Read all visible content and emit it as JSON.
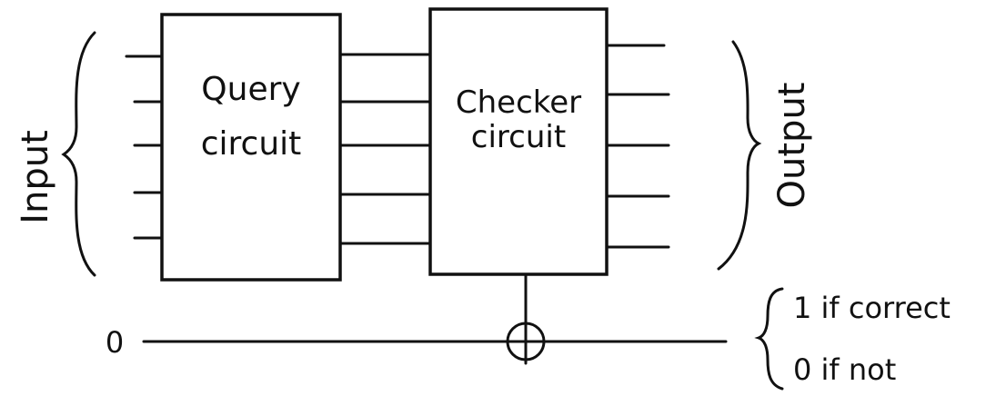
{
  "diagram": {
    "input_label": "Input",
    "output_label": "Output",
    "query_box": {
      "line1": "Query",
      "line2": "circuit"
    },
    "checker_box": {
      "line1": "Checker",
      "line2": "circuit"
    },
    "ancilla_initial": "0",
    "result": {
      "line1": "1 if correct",
      "line2": "0 if not"
    },
    "gate": "xor-target-icon"
  }
}
